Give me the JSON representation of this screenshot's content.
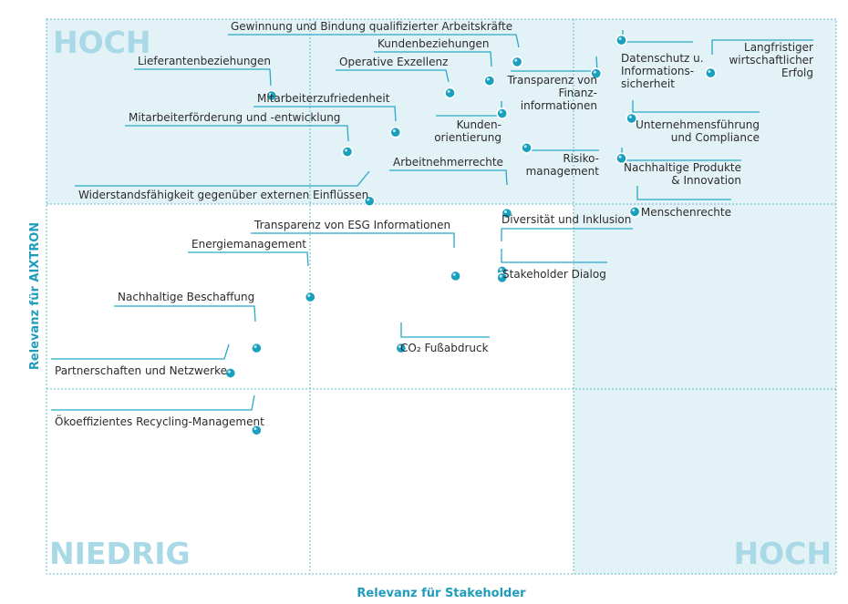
{
  "chart_data": {
    "type": "scatter",
    "xlabel": "Relevanz für Stakeholder",
    "ylabel": "Relevanz für AIXTRON",
    "corner_labels": {
      "top_left": "HOCH",
      "bottom_left": "NIEDRIG",
      "bottom_right": "HOCH"
    },
    "colors": {
      "marker": "#1aa0bf",
      "leader": "#29a9c6",
      "grid": "#5fb8cf",
      "high_zone": "#e3f2f6",
      "corner_text": "#a9d9e6",
      "axis_title": "#1f9dbd"
    },
    "points": [
      {
        "label": "Gewinnung und Bindung qualifizierter Arbeitskräfte",
        "x": 0.596,
        "y": 0.923
      },
      {
        "label": "Kundenbeziehungen",
        "x": 0.561,
        "y": 0.889
      },
      {
        "label": "Operative Exzellenz",
        "x": 0.511,
        "y": 0.867
      },
      {
        "label": "Lieferantenbeziehungen",
        "x": 0.285,
        "y": 0.862
      },
      {
        "label": "Mitarbeiterzufriedenheit",
        "x": 0.442,
        "y": 0.796
      },
      {
        "label": "Mitarbeiterförderung und -entwicklung",
        "x": 0.381,
        "y": 0.761
      },
      {
        "label": "Transparenz von Finanz-informationen",
        "x": 0.696,
        "y": 0.902
      },
      {
        "label": "Kunden-orientierung",
        "x": 0.577,
        "y": 0.83
      },
      {
        "label": "Risiko-management",
        "x": 0.608,
        "y": 0.768
      },
      {
        "label": "Arbeitnehmerrechte",
        "x": 0.583,
        "y": 0.65
      },
      {
        "label": "Widerstandsfähigkeit gegenüber externen Einflüssen",
        "x": 0.409,
        "y": 0.672
      },
      {
        "label": "Datenschutz u. Informations-sicherheit",
        "x": 0.728,
        "y": 0.962
      },
      {
        "label": "Langfristiger wirtschaftlicher Erfolg",
        "x": 0.841,
        "y": 0.903
      },
      {
        "label": "Unternehmensführung und Compliance",
        "x": 0.741,
        "y": 0.821
      },
      {
        "label": "Nachhaltige Produkte & Innovation",
        "x": 0.728,
        "y": 0.749
      },
      {
        "label": "Menschenrechte",
        "x": 0.745,
        "y": 0.653
      },
      {
        "label": "Transparenz von ESG Informationen",
        "x": 0.518,
        "y": 0.537
      },
      {
        "label": "Diversität und Inklusion",
        "x": 0.577,
        "y": 0.546
      },
      {
        "label": "Stakeholder Dialog",
        "x": 0.577,
        "y": 0.534
      },
      {
        "label": "Energiemanagement",
        "x": 0.334,
        "y": 0.499
      },
      {
        "label": "Nachhaltige Beschaffung",
        "x": 0.266,
        "y": 0.407
      },
      {
        "label": "CO₂ Fußabdruck",
        "x": 0.449,
        "y": 0.407
      },
      {
        "label": "Partnerschaften und Netzwerke",
        "x": 0.233,
        "y": 0.362
      },
      {
        "label": "Ökoeffizientes Recycling-Management",
        "x": 0.266,
        "y": 0.259
      }
    ]
  }
}
